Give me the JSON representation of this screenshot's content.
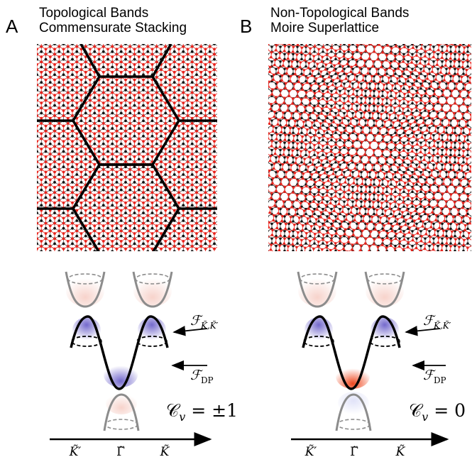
{
  "panels": [
    {
      "letter": "A",
      "title_line1": "Topological Bands",
      "title_line2": "Commensurate Stacking",
      "flux_K_label": "ℱ",
      "flux_K_sub": "K̃,K̃′",
      "flux_DP_label": "ℱ",
      "flux_DP_sub": "DP",
      "chern_C": "𝒞",
      "chern_sub": "v",
      "chern_value": " = ±1",
      "axis_ticks": [
        "K̃′",
        "Γ̃",
        "K̃"
      ]
    },
    {
      "letter": "B",
      "title_line1": "Non-Topological Bands",
      "title_line2": "Moire Superlattice",
      "flux_K_label": "ℱ",
      "flux_K_sub": "K̃,K̃′",
      "flux_DP_label": "ℱ",
      "flux_DP_sub": "DP",
      "chern_C": "𝒞",
      "chern_sub": "v",
      "chern_value": " = 0",
      "axis_ticks": [
        "K̃′",
        "Γ̃",
        "K̃"
      ]
    }
  ],
  "colors": {
    "atom_red": "#e8231c",
    "atom_black": "#111111",
    "band_gray": "#8c8c8c",
    "berry_purple": "#6a5acd",
    "berry_red": "#e8401c"
  }
}
